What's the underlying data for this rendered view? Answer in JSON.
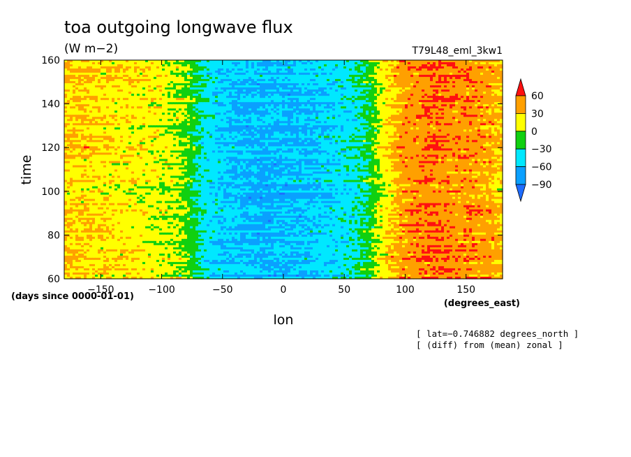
{
  "chart_data": {
    "type": "heatmap",
    "title": "toa outgoing longwave flux",
    "units": "(W m−2)",
    "experiment": "T79L48_eml_3kw1",
    "xlabel": "lon",
    "ylabel": "time",
    "x_units": "(degrees_east)",
    "y_units": "(days since 0000-01-01)",
    "xlim": [
      -180,
      180
    ],
    "ylim": [
      60,
      160
    ],
    "x_ticks": [
      -150,
      -100,
      -50,
      0,
      50,
      100,
      150
    ],
    "y_ticks": [
      60,
      80,
      100,
      120,
      140,
      160
    ],
    "x_tick_labels": [
      "−150",
      "−100",
      "−50",
      "0",
      "50",
      "100",
      "150"
    ],
    "y_tick_labels": [
      "60",
      "80",
      "100",
      "120",
      "140",
      "160"
    ],
    "annotations": [
      "[ lat=−0.746882 degrees_north ]",
      "[ (diff) from (mean) zonal ]"
    ],
    "colorbar": {
      "levels": [
        -90,
        -60,
        -30,
        0,
        30,
        60
      ],
      "labels": [
        "−90",
        "−60",
        "−30",
        "0",
        "30",
        "60"
      ],
      "colors": [
        "#1e6cff",
        "#0aa0ff",
        "#00e8ff",
        "#10d010",
        "#ffff00",
        "#ffa000",
        "#ff1010"
      ]
    },
    "zonal_profile": {
      "lon": [
        -180,
        -160,
        -140,
        -120,
        -100,
        -90,
        -80,
        -70,
        -60,
        -50,
        -40,
        -30,
        -20,
        -10,
        0,
        10,
        20,
        30,
        40,
        50,
        60,
        70,
        80,
        90,
        100,
        110,
        120,
        130,
        140,
        150,
        160,
        170,
        180
      ],
      "value": [
        30,
        25,
        20,
        18,
        12,
        5,
        -5,
        -30,
        -45,
        -55,
        -60,
        -62,
        -65,
        -65,
        -62,
        -60,
        -58,
        -55,
        -50,
        -45,
        -35,
        -20,
        10,
        30,
        45,
        50,
        55,
        55,
        50,
        50,
        45,
        40,
        30
      ]
    }
  }
}
